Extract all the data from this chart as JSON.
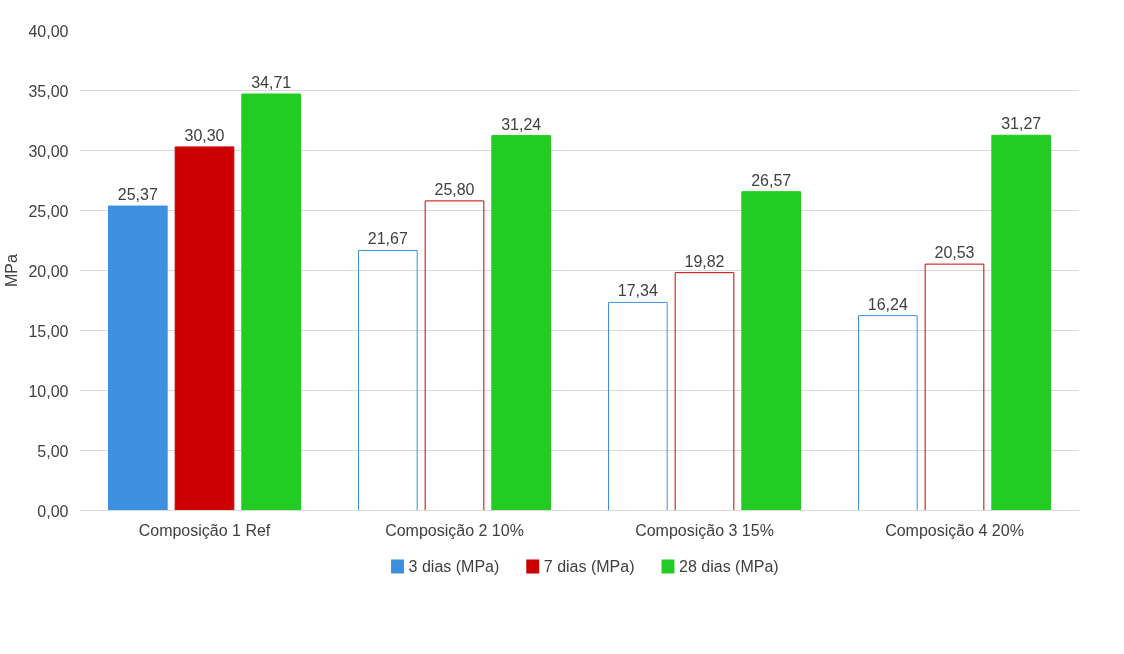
{
  "chart_data": {
    "type": "bar",
    "categories": [
      "Composição 1 Ref",
      "Composição 2 10%",
      "Composição 3 15%",
      "Composição 4 20%"
    ],
    "ylabel": "MPa",
    "series": [
      {
        "name": "3 dias (MPa)",
        "color": "#3d8fe0",
        "colors": [
          "#3d8fe0",
          null,
          null,
          null
        ],
        "values": [
          25.37,
          21.67,
          17.34,
          16.24
        ],
        "value_labels": [
          "25,37",
          "21,67",
          "17,34",
          "16,24"
        ]
      },
      {
        "name": "7 dias (MPa)",
        "color": "#cc0000",
        "colors": [
          "#cc0000",
          null,
          null,
          null
        ],
        "values": [
          30.3,
          25.8,
          19.82,
          20.53
        ],
        "value_labels": [
          "30,30",
          "25,80",
          "19,82",
          "20,53"
        ]
      },
      {
        "name": "28 dias (MPa)",
        "color": "#22cc22",
        "values": [
          34.71,
          31.24,
          26.57,
          31.27
        ],
        "value_labels": [
          "34,71",
          "31,24",
          "26,57",
          "31,27"
        ]
      }
    ],
    "ylim": [
      0,
      40
    ],
    "yticks": [
      {
        "value": 0,
        "label": "0,00"
      },
      {
        "value": 5,
        "label": "5,00"
      },
      {
        "value": 10,
        "label": "10,00"
      },
      {
        "value": 15,
        "label": "15,00"
      },
      {
        "value": 20,
        "label": "20,00"
      },
      {
        "value": 25,
        "label": "25,00"
      },
      {
        "value": 30,
        "label": "30,00"
      },
      {
        "value": 35,
        "label": "35,00"
      },
      {
        "value": 40,
        "label": "40,00"
      }
    ],
    "grid": "y",
    "legend": "bottom"
  }
}
